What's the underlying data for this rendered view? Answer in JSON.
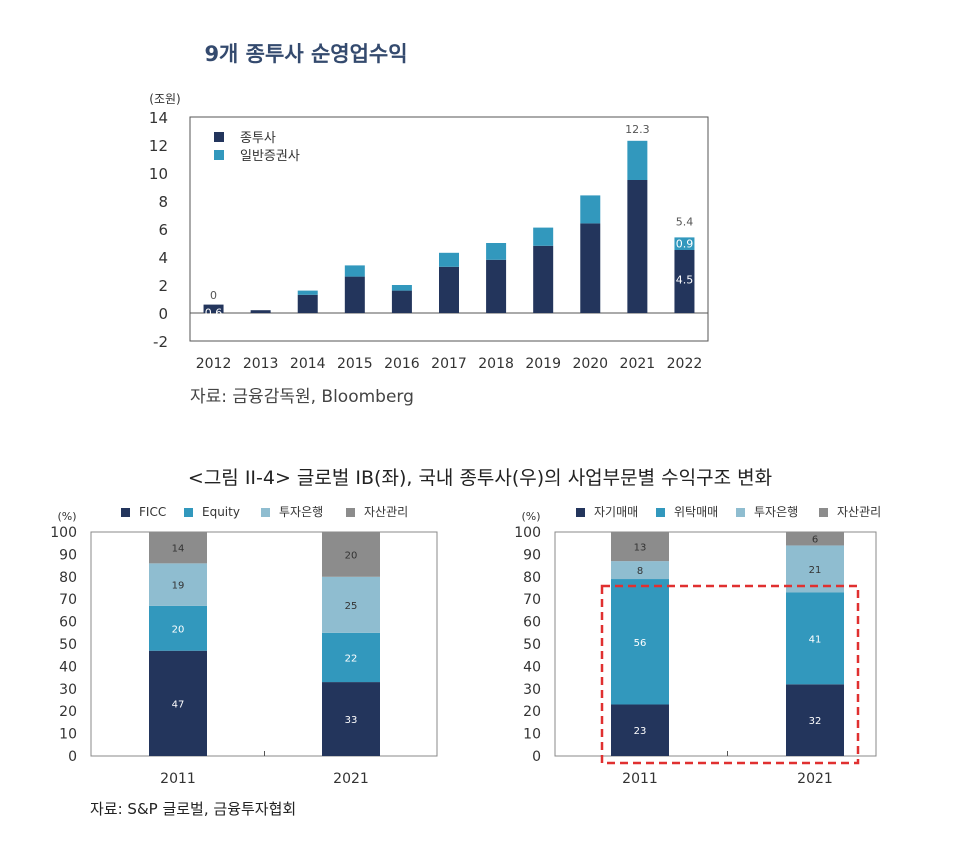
{
  "top": {
    "title": "9개 종투사 순영업수익",
    "unit": "(조원)",
    "source": "자료: 금융감독원, Bloomberg"
  },
  "bottom": {
    "title": "<그림 II-4> 글로벌 IB(좌), 국내 종투사(우)의 사업부문별 수익구조 변화",
    "source": "자료: S&P 글로벌, 금융투자협회"
  },
  "colors": {
    "navy": "#23355c",
    "teal": "#3298bd",
    "lightblue": "#8fbdd0",
    "gray": "#8c8c8c",
    "highlight": "#e03030"
  },
  "chart_data": [
    {
      "type": "bar",
      "stacked": true,
      "title": "9개 종투사 순영업수익",
      "ylabel": "(조원)",
      "ylim": [
        -2,
        14
      ],
      "yticks": [
        -2,
        0,
        2,
        4,
        6,
        8,
        10,
        12,
        14
      ],
      "categories": [
        "2012",
        "2013",
        "2014",
        "2015",
        "2016",
        "2017",
        "2018",
        "2019",
        "2020",
        "2021",
        "2022"
      ],
      "series": [
        {
          "name": "종투사",
          "values": [
            0.6,
            0.2,
            1.3,
            2.6,
            1.6,
            3.3,
            3.8,
            4.8,
            6.4,
            9.5,
            4.5
          ]
        },
        {
          "name": "일반증권사",
          "values": [
            0.0,
            0.0,
            0.3,
            0.8,
            0.4,
            1.0,
            1.2,
            1.3,
            2.0,
            2.8,
            0.9
          ]
        }
      ],
      "annotations": [
        {
          "category": "2012",
          "text": "0"
        },
        {
          "category": "2012",
          "text": "0.6"
        },
        {
          "category": "2021",
          "text": "12.3"
        },
        {
          "category": "2022",
          "text": "5.4"
        },
        {
          "category": "2022",
          "text": "0.9"
        },
        {
          "category": "2022",
          "text": "4.5"
        }
      ],
      "legend": "top-left",
      "grid": false
    },
    {
      "type": "bar",
      "stacked": true,
      "ylabel": "(%)",
      "ylim": [
        0,
        100
      ],
      "yticks": [
        0,
        10,
        20,
        30,
        40,
        50,
        60,
        70,
        80,
        90,
        100
      ],
      "categories": [
        "2011",
        "2021"
      ],
      "series": [
        {
          "name": "FICC",
          "values": [
            47,
            33
          ]
        },
        {
          "name": "Equity",
          "values": [
            20,
            22
          ]
        },
        {
          "name": "투자은행",
          "values": [
            19,
            25
          ]
        },
        {
          "name": "자산관리",
          "values": [
            14,
            20
          ]
        }
      ],
      "legend": "top",
      "grid": false
    },
    {
      "type": "bar",
      "stacked": true,
      "ylabel": "(%)",
      "ylim": [
        0,
        100
      ],
      "yticks": [
        0,
        10,
        20,
        30,
        40,
        50,
        60,
        70,
        80,
        90,
        100
      ],
      "categories": [
        "2011",
        "2021"
      ],
      "series": [
        {
          "name": "자기매매",
          "values": [
            23,
            32
          ]
        },
        {
          "name": "위탁매매",
          "values": [
            56,
            41
          ]
        },
        {
          "name": "투자은행",
          "values": [
            8,
            21
          ]
        },
        {
          "name": "자산관리",
          "values": [
            13,
            6
          ]
        }
      ],
      "legend": "top",
      "grid": false
    }
  ]
}
